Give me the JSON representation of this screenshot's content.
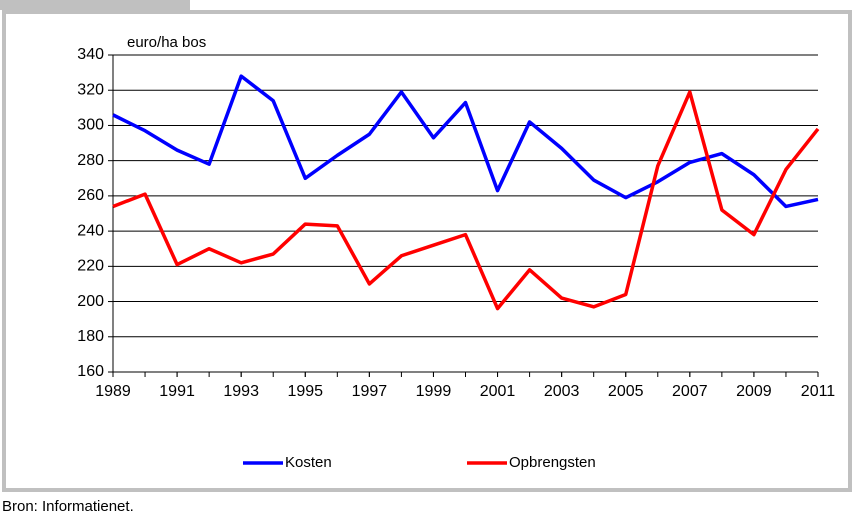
{
  "chart_data": {
    "type": "line",
    "y_axis_label": "euro/ha bos",
    "x": [
      1989,
      1990,
      1991,
      1992,
      1993,
      1994,
      1995,
      1996,
      1997,
      1998,
      1999,
      2000,
      2001,
      2002,
      2003,
      2004,
      2005,
      2006,
      2007,
      2008,
      2009,
      2010,
      2011
    ],
    "series": [
      {
        "name": "Kosten",
        "color": "#0000ff",
        "values": [
          306,
          297,
          286,
          278,
          328,
          314,
          270,
          283,
          295,
          319,
          293,
          313,
          263,
          302,
          287,
          269,
          259,
          268,
          279,
          284,
          272,
          254,
          258
        ]
      },
      {
        "name": "Opbrengsten",
        "color": "#ff0000",
        "values": [
          254,
          261,
          221,
          230,
          222,
          227,
          244,
          243,
          210,
          226,
          232,
          238,
          196,
          218,
          202,
          197,
          204,
          277,
          319,
          252,
          238,
          275,
          298
        ]
      }
    ],
    "xlim": [
      1989,
      2011
    ],
    "xticks": [
      1989,
      1991,
      1993,
      1995,
      1997,
      1999,
      2001,
      2003,
      2005,
      2007,
      2009,
      2011
    ],
    "ylim": [
      160,
      340
    ],
    "yticks": [
      160,
      180,
      200,
      220,
      240,
      260,
      280,
      300,
      320,
      340
    ],
    "grid": true,
    "legend": "bottom",
    "source": "Bron: Informatienet."
  }
}
